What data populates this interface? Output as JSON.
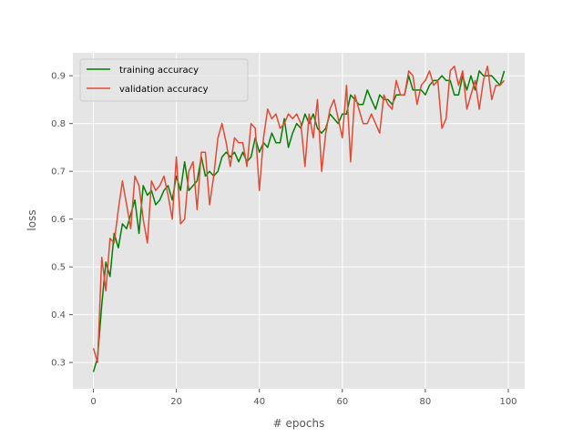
{
  "chart_data": {
    "type": "line",
    "xlabel": "# epochs",
    "ylabel": "loss",
    "xlim": [
      -4.95,
      103.95
    ],
    "ylim": [
      0.245,
      0.948
    ],
    "xticks": [
      0,
      20,
      40,
      60,
      80,
      100
    ],
    "yticks": [
      0.3,
      0.4,
      0.5,
      0.6,
      0.7,
      0.8,
      0.9
    ],
    "grid": true,
    "legend_position": "top-left",
    "background": "#e5e5e5",
    "series": [
      {
        "name": "training accuracy",
        "color": "#008000",
        "x": [
          0,
          1,
          2,
          3,
          4,
          5,
          6,
          7,
          8,
          9,
          10,
          11,
          12,
          13,
          14,
          15,
          16,
          17,
          18,
          19,
          20,
          21,
          22,
          23,
          24,
          25,
          26,
          27,
          28,
          29,
          30,
          31,
          32,
          33,
          34,
          35,
          36,
          37,
          38,
          39,
          40,
          41,
          42,
          43,
          44,
          45,
          46,
          47,
          48,
          49,
          50,
          51,
          52,
          53,
          54,
          55,
          56,
          57,
          58,
          59,
          60,
          61,
          62,
          63,
          64,
          65,
          66,
          67,
          68,
          69,
          70,
          71,
          72,
          73,
          74,
          75,
          76,
          77,
          78,
          79,
          80,
          81,
          82,
          83,
          84,
          85,
          86,
          87,
          88,
          89,
          90,
          91,
          92,
          93,
          94,
          95,
          96,
          97,
          98,
          99
        ],
        "values": [
          0.28,
          0.31,
          0.42,
          0.51,
          0.48,
          0.57,
          0.54,
          0.59,
          0.58,
          0.61,
          0.64,
          0.57,
          0.67,
          0.65,
          0.66,
          0.63,
          0.64,
          0.66,
          0.67,
          0.64,
          0.69,
          0.66,
          0.72,
          0.66,
          0.67,
          0.68,
          0.73,
          0.69,
          0.7,
          0.69,
          0.7,
          0.73,
          0.74,
          0.73,
          0.74,
          0.72,
          0.74,
          0.72,
          0.73,
          0.77,
          0.74,
          0.76,
          0.75,
          0.78,
          0.76,
          0.76,
          0.81,
          0.75,
          0.78,
          0.8,
          0.79,
          0.82,
          0.8,
          0.82,
          0.79,
          0.78,
          0.79,
          0.82,
          0.81,
          0.8,
          0.82,
          0.82,
          0.86,
          0.85,
          0.84,
          0.84,
          0.87,
          0.85,
          0.83,
          0.86,
          0.85,
          0.85,
          0.84,
          0.86,
          0.86,
          0.86,
          0.9,
          0.87,
          0.87,
          0.87,
          0.86,
          0.88,
          0.89,
          0.89,
          0.9,
          0.89,
          0.89,
          0.86,
          0.86,
          0.9,
          0.87,
          0.9,
          0.87,
          0.91,
          0.9,
          0.9,
          0.9,
          0.89,
          0.88,
          0.91
        ]
      },
      {
        "name": "validation accuracy",
        "color": "#e24a33",
        "x": [
          0,
          1,
          2,
          3,
          4,
          5,
          6,
          7,
          8,
          9,
          10,
          11,
          12,
          13,
          14,
          15,
          16,
          17,
          18,
          19,
          20,
          21,
          22,
          23,
          24,
          25,
          26,
          27,
          28,
          29,
          30,
          31,
          32,
          33,
          34,
          35,
          36,
          37,
          38,
          39,
          40,
          41,
          42,
          43,
          44,
          45,
          46,
          47,
          48,
          49,
          50,
          51,
          52,
          53,
          54,
          55,
          56,
          57,
          58,
          59,
          60,
          61,
          62,
          63,
          64,
          65,
          66,
          67,
          68,
          69,
          70,
          71,
          72,
          73,
          74,
          75,
          76,
          77,
          78,
          79,
          80,
          81,
          82,
          83,
          84,
          85,
          86,
          87,
          88,
          89,
          90,
          91,
          92,
          93,
          94,
          95,
          96,
          97,
          98,
          99
        ],
        "values": [
          0.33,
          0.3,
          0.52,
          0.45,
          0.56,
          0.55,
          0.62,
          0.68,
          0.63,
          0.58,
          0.69,
          0.67,
          0.6,
          0.55,
          0.68,
          0.66,
          0.67,
          0.69,
          0.65,
          0.6,
          0.73,
          0.59,
          0.6,
          0.7,
          0.72,
          0.62,
          0.74,
          0.74,
          0.63,
          0.69,
          0.77,
          0.8,
          0.76,
          0.71,
          0.77,
          0.76,
          0.76,
          0.71,
          0.8,
          0.79,
          0.66,
          0.77,
          0.83,
          0.81,
          0.82,
          0.79,
          0.8,
          0.82,
          0.81,
          0.82,
          0.8,
          0.71,
          0.82,
          0.77,
          0.85,
          0.7,
          0.78,
          0.83,
          0.85,
          0.81,
          0.77,
          0.88,
          0.72,
          0.86,
          0.83,
          0.8,
          0.8,
          0.82,
          0.8,
          0.78,
          0.86,
          0.84,
          0.83,
          0.89,
          0.86,
          0.86,
          0.91,
          0.9,
          0.84,
          0.88,
          0.89,
          0.91,
          0.88,
          0.89,
          0.79,
          0.81,
          0.91,
          0.92,
          0.88,
          0.91,
          0.83,
          0.86,
          0.89,
          0.83,
          0.89,
          0.92,
          0.85,
          0.88,
          0.88,
          0.89
        ]
      }
    ]
  }
}
